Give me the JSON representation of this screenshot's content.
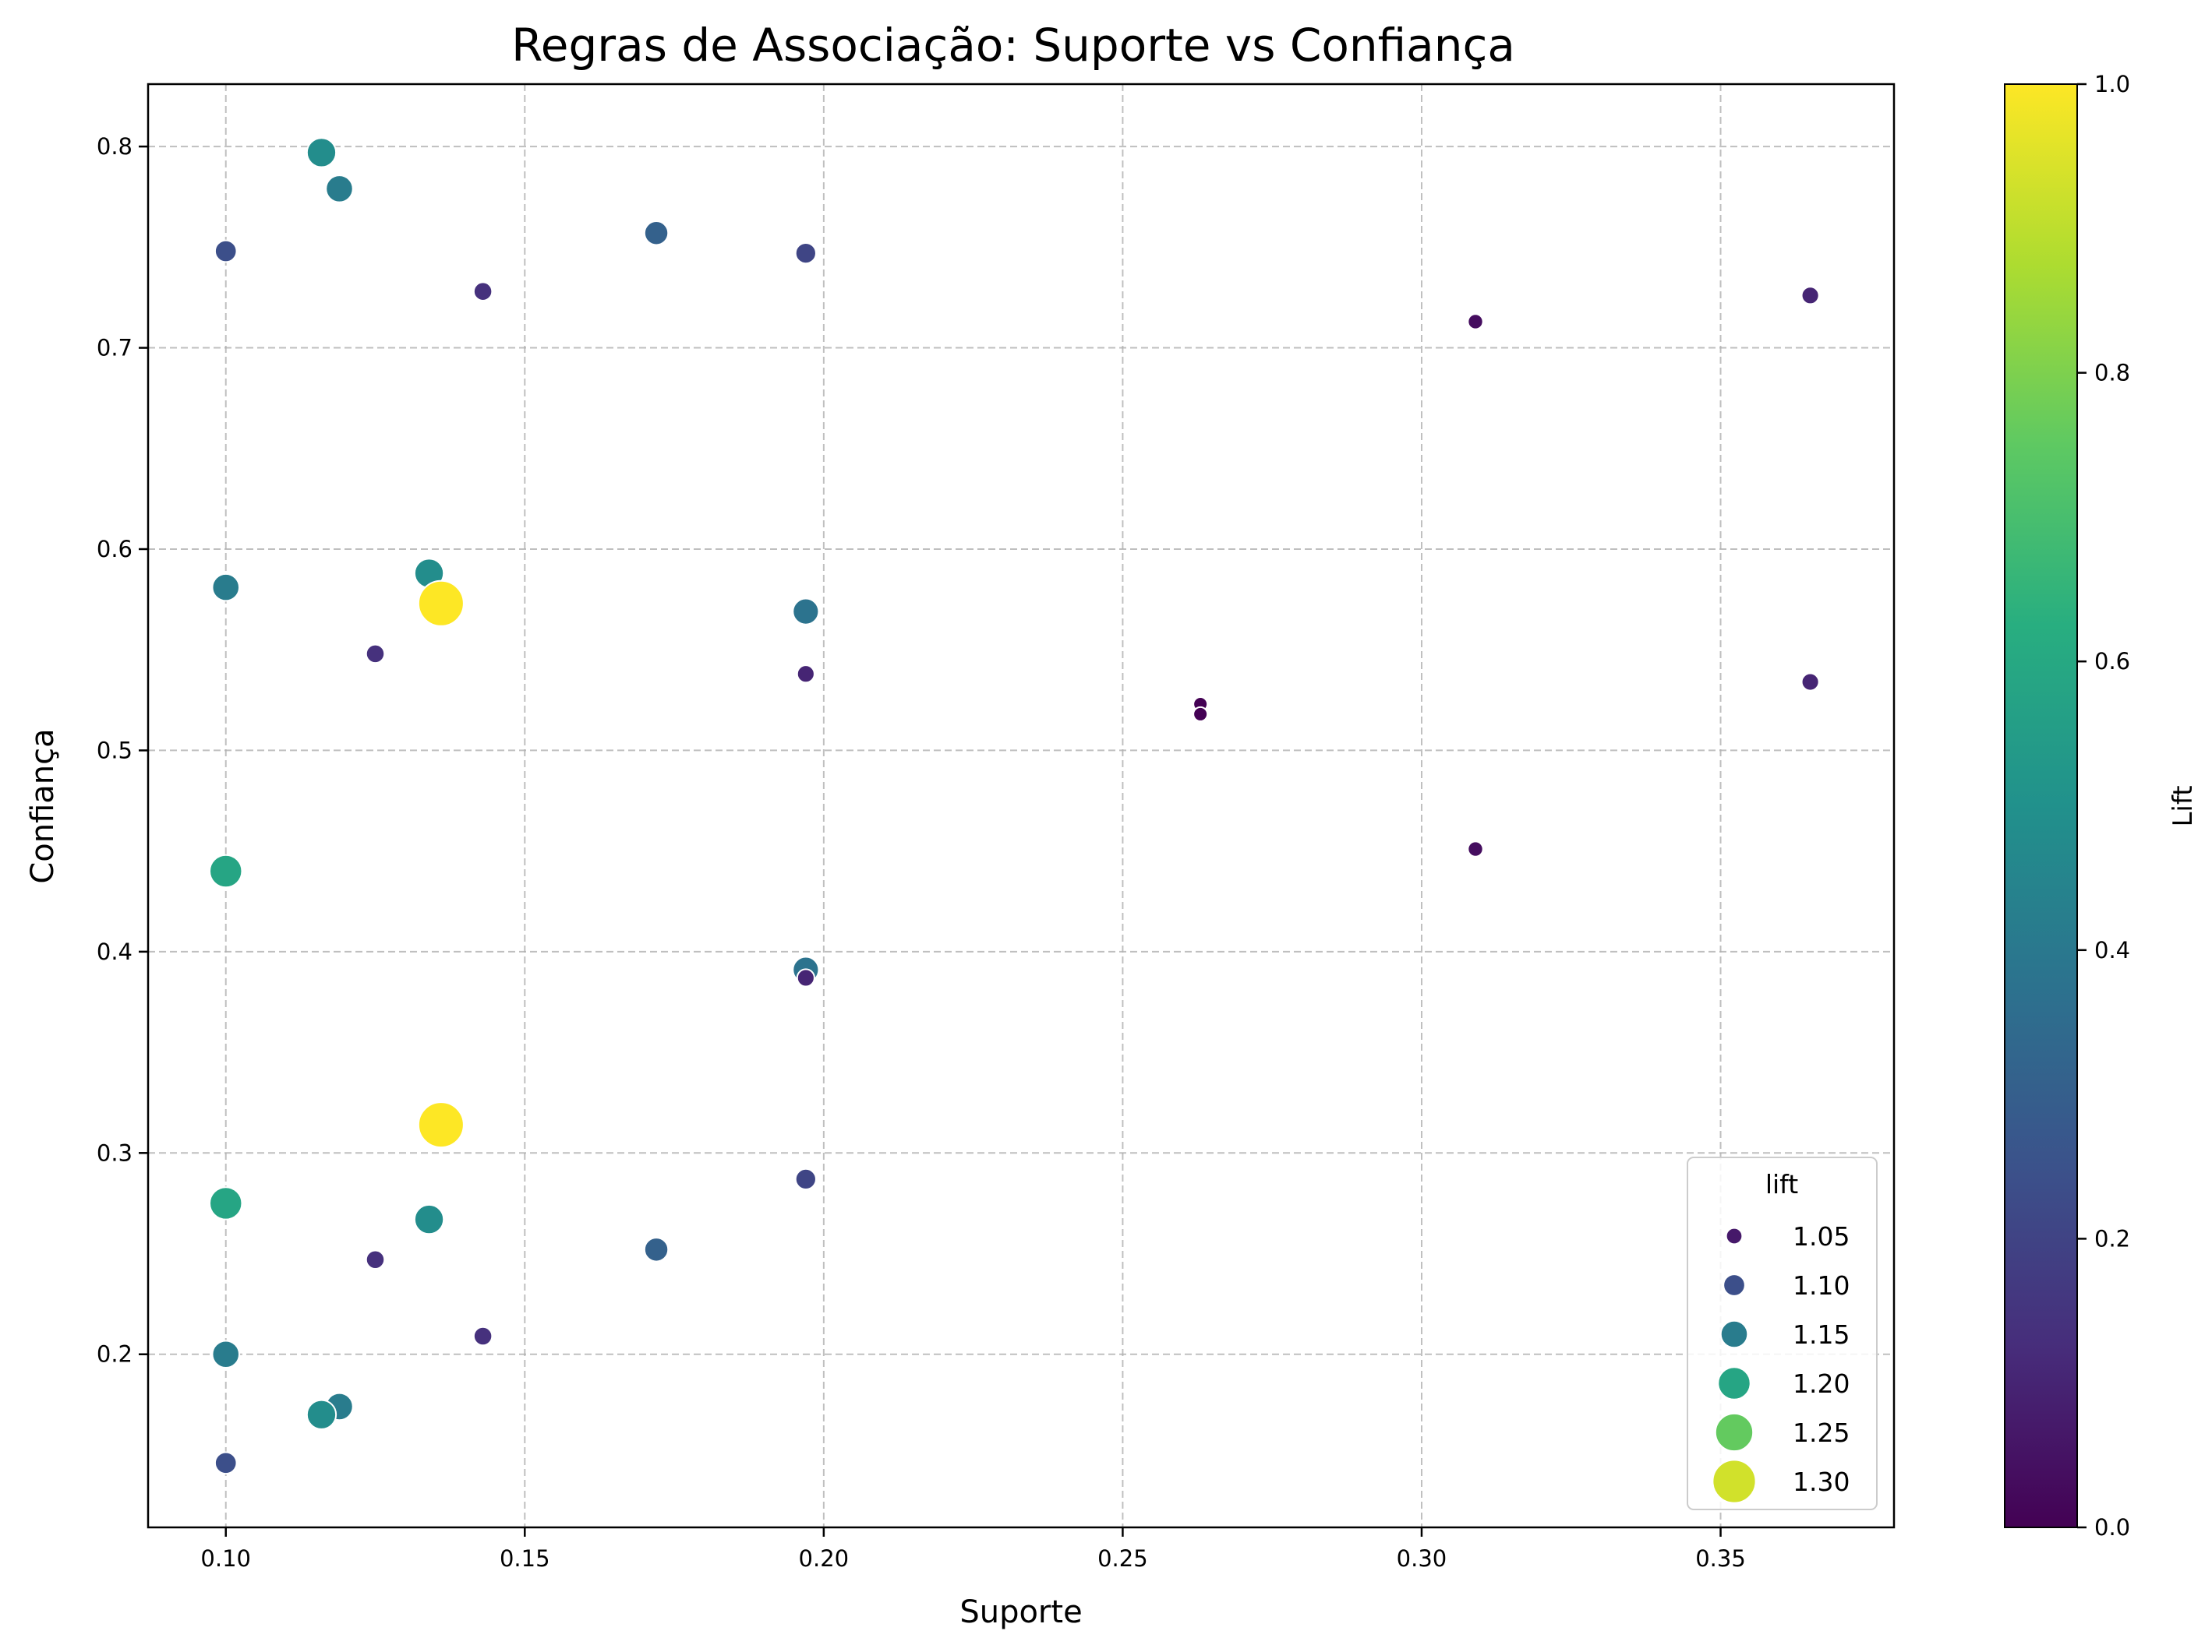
{
  "chart_data": {
    "type": "scatter",
    "title": "Regras de Associação: Suporte vs Confiança",
    "xlabel": "Suporte",
    "ylabel": "Confiança",
    "xlim": [
      0.087,
      0.379
    ],
    "ylim": [
      0.114,
      0.831
    ],
    "xticks": [
      "0.10",
      "0.15",
      "0.20",
      "0.25",
      "0.30",
      "0.35"
    ],
    "xtick_values": [
      0.1,
      0.15,
      0.2,
      0.25,
      0.3,
      0.35
    ],
    "yticks": [
      "0.2",
      "0.3",
      "0.4",
      "0.5",
      "0.6",
      "0.7",
      "0.8"
    ],
    "ytick_values": [
      0.2,
      0.3,
      0.4,
      0.5,
      0.6,
      0.7,
      0.8
    ],
    "grid": true,
    "colormap": "viridis",
    "points": [
      {
        "x": 0.116,
        "y": 0.797,
        "lift": 1.17
      },
      {
        "x": 0.119,
        "y": 0.779,
        "lift": 1.15
      },
      {
        "x": 0.1,
        "y": 0.748,
        "lift": 1.1
      },
      {
        "x": 0.143,
        "y": 0.728,
        "lift": 1.07
      },
      {
        "x": 0.172,
        "y": 0.757,
        "lift": 1.12
      },
      {
        "x": 0.197,
        "y": 0.747,
        "lift": 1.09
      },
      {
        "x": 0.309,
        "y": 0.713,
        "lift": 1.04
      },
      {
        "x": 0.365,
        "y": 0.726,
        "lift": 1.06
      },
      {
        "x": 0.1,
        "y": 0.581,
        "lift": 1.15
      },
      {
        "x": 0.134,
        "y": 0.588,
        "lift": 1.17
      },
      {
        "x": 0.136,
        "y": 0.573,
        "lift": 1.32
      },
      {
        "x": 0.197,
        "y": 0.569,
        "lift": 1.14
      },
      {
        "x": 0.125,
        "y": 0.548,
        "lift": 1.07
      },
      {
        "x": 0.197,
        "y": 0.538,
        "lift": 1.06
      },
      {
        "x": 0.263,
        "y": 0.523,
        "lift": 1.03
      },
      {
        "x": 0.263,
        "y": 0.518,
        "lift": 1.03
      },
      {
        "x": 0.365,
        "y": 0.534,
        "lift": 1.06
      },
      {
        "x": 0.309,
        "y": 0.451,
        "lift": 1.04
      },
      {
        "x": 0.1,
        "y": 0.44,
        "lift": 1.2
      },
      {
        "x": 0.197,
        "y": 0.391,
        "lift": 1.14
      },
      {
        "x": 0.197,
        "y": 0.387,
        "lift": 1.06
      },
      {
        "x": 0.136,
        "y": 0.314,
        "lift": 1.32
      },
      {
        "x": 0.197,
        "y": 0.287,
        "lift": 1.09
      },
      {
        "x": 0.1,
        "y": 0.275,
        "lift": 1.2
      },
      {
        "x": 0.134,
        "y": 0.267,
        "lift": 1.17
      },
      {
        "x": 0.172,
        "y": 0.252,
        "lift": 1.12
      },
      {
        "x": 0.125,
        "y": 0.247,
        "lift": 1.07
      },
      {
        "x": 0.143,
        "y": 0.209,
        "lift": 1.07
      },
      {
        "x": 0.1,
        "y": 0.2,
        "lift": 1.15
      },
      {
        "x": 0.119,
        "y": 0.174,
        "lift": 1.15
      },
      {
        "x": 0.116,
        "y": 0.17,
        "lift": 1.17
      },
      {
        "x": 0.1,
        "y": 0.146,
        "lift": 1.1
      }
    ],
    "legend": {
      "title": "lift",
      "placement": "lower-right",
      "entries": [
        {
          "label": "1.05",
          "lift": 1.05
        },
        {
          "label": "1.10",
          "lift": 1.1
        },
        {
          "label": "1.15",
          "lift": 1.15
        },
        {
          "label": "1.20",
          "lift": 1.2
        },
        {
          "label": "1.25",
          "lift": 1.25
        },
        {
          "label": "1.30",
          "lift": 1.3
        }
      ]
    },
    "colorbar": {
      "label": "Lift",
      "range": [
        0.0,
        1.0
      ],
      "ticks": [
        "0.0",
        "0.2",
        "0.4",
        "0.6",
        "0.8",
        "1.0"
      ],
      "tick_values": [
        0.0,
        0.2,
        0.4,
        0.6,
        0.8,
        1.0
      ]
    },
    "lift_range": [
      1.03,
      1.32
    ]
  }
}
